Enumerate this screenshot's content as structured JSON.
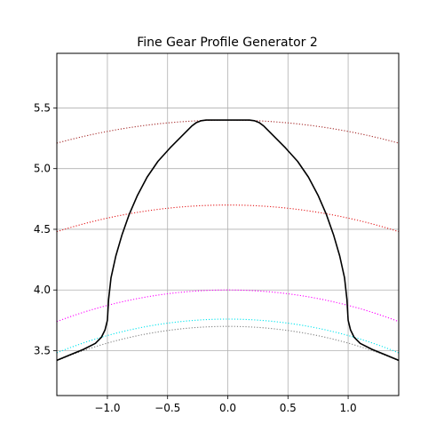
{
  "chart_data": {
    "type": "line",
    "title": "Fine Gear Profile Generator 2",
    "xlabel": "",
    "ylabel": "",
    "xlim": [
      -1.42,
      1.42
    ],
    "ylim": [
      3.13,
      5.95
    ],
    "xticks": [
      -1.0,
      -0.5,
      0.0,
      0.5,
      1.0
    ],
    "xtick_labels": [
      "−1.0",
      "−0.5",
      "0.0",
      "0.5",
      "1.0"
    ],
    "yticks": [
      3.5,
      4.0,
      4.5,
      5.0,
      5.5
    ],
    "ytick_labels": [
      "3.5",
      "4.0",
      "4.5",
      "5.0",
      "5.5"
    ],
    "grid": true,
    "legend": "none",
    "circles": [
      {
        "radius": 5.4,
        "color": "#a52a2a",
        "style": "dotted"
      },
      {
        "radius": 4.7,
        "color": "#e41a1c",
        "style": "dotted"
      },
      {
        "radius": 4.0,
        "color": "#ff00ff",
        "style": "dotted"
      },
      {
        "radius": 3.76,
        "color": "#00e5ee",
        "style": "dotted"
      },
      {
        "radius": 3.7,
        "color": "#808080",
        "style": "dotted"
      }
    ],
    "profile": {
      "color": "#000000",
      "x": [
        -1.42,
        -1.3,
        -1.2,
        -1.1,
        -1.05,
        -1.02,
        -1.0,
        -0.99,
        -0.97,
        -0.93,
        -0.88,
        -0.82,
        -0.75,
        -0.67,
        -0.58,
        -0.48,
        -0.38,
        -0.3,
        -0.26,
        -0.22,
        -0.18,
        -0.1,
        0.0,
        0.1,
        0.18,
        0.22,
        0.26,
        0.3,
        0.38,
        0.48,
        0.58,
        0.67,
        0.75,
        0.82,
        0.88,
        0.93,
        0.97,
        0.99,
        1.0,
        1.02,
        1.05,
        1.1,
        1.2,
        1.3,
        1.42
      ],
      "y": [
        3.42,
        3.47,
        3.51,
        3.56,
        3.61,
        3.67,
        3.75,
        3.92,
        4.1,
        4.28,
        4.45,
        4.62,
        4.78,
        4.93,
        5.06,
        5.17,
        5.27,
        5.35,
        5.38,
        5.395,
        5.4,
        5.4,
        5.4,
        5.4,
        5.4,
        5.395,
        5.38,
        5.35,
        5.27,
        5.17,
        5.06,
        4.93,
        4.78,
        4.62,
        4.45,
        4.28,
        4.1,
        3.92,
        3.75,
        3.67,
        3.61,
        3.56,
        3.51,
        3.47,
        3.42
      ]
    }
  }
}
